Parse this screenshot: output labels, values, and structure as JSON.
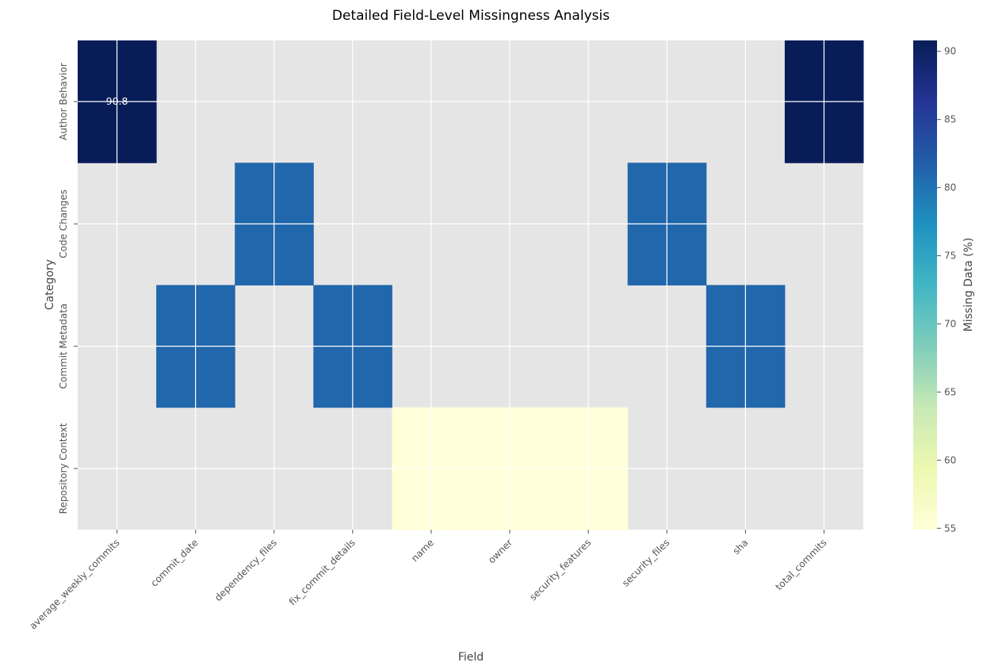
{
  "chart_data": {
    "type": "heatmap",
    "title": "Detailed Field-Level Missingness Analysis",
    "xlabel": "Field",
    "ylabel": "Category",
    "x_categories": [
      "average_weekly_commits",
      "commit_date",
      "dependency_files",
      "fix_commit_details",
      "name",
      "owner",
      "security_features",
      "security_files",
      "sha",
      "total_commits"
    ],
    "y_categories": [
      "Author Behavior",
      "Code Changes",
      "Commit Metadata",
      "Repository Context"
    ],
    "values": [
      [
        90.8,
        null,
        null,
        null,
        null,
        null,
        null,
        null,
        null,
        90.8
      ],
      [
        null,
        null,
        81.0,
        null,
        null,
        null,
        null,
        81.0,
        null,
        null
      ],
      [
        null,
        81.0,
        null,
        81.0,
        null,
        null,
        null,
        null,
        81.0,
        null
      ],
      [
        null,
        null,
        null,
        null,
        54.9,
        54.9,
        54.9,
        null,
        null,
        null
      ]
    ],
    "annotations": [
      {
        "row": 0,
        "col": 0,
        "text": "90.8"
      }
    ],
    "missing_color": "#e5e5e5",
    "colormap": "YlGnBu",
    "colorbar": {
      "label": "Missing Data (%)",
      "range": [
        54.9,
        90.8
      ],
      "ticks": [
        "55",
        "60",
        "65",
        "70",
        "75",
        "80",
        "85",
        "90"
      ],
      "tick_values": [
        55,
        60,
        65,
        70,
        75,
        80,
        85,
        90
      ]
    },
    "grid": true
  }
}
